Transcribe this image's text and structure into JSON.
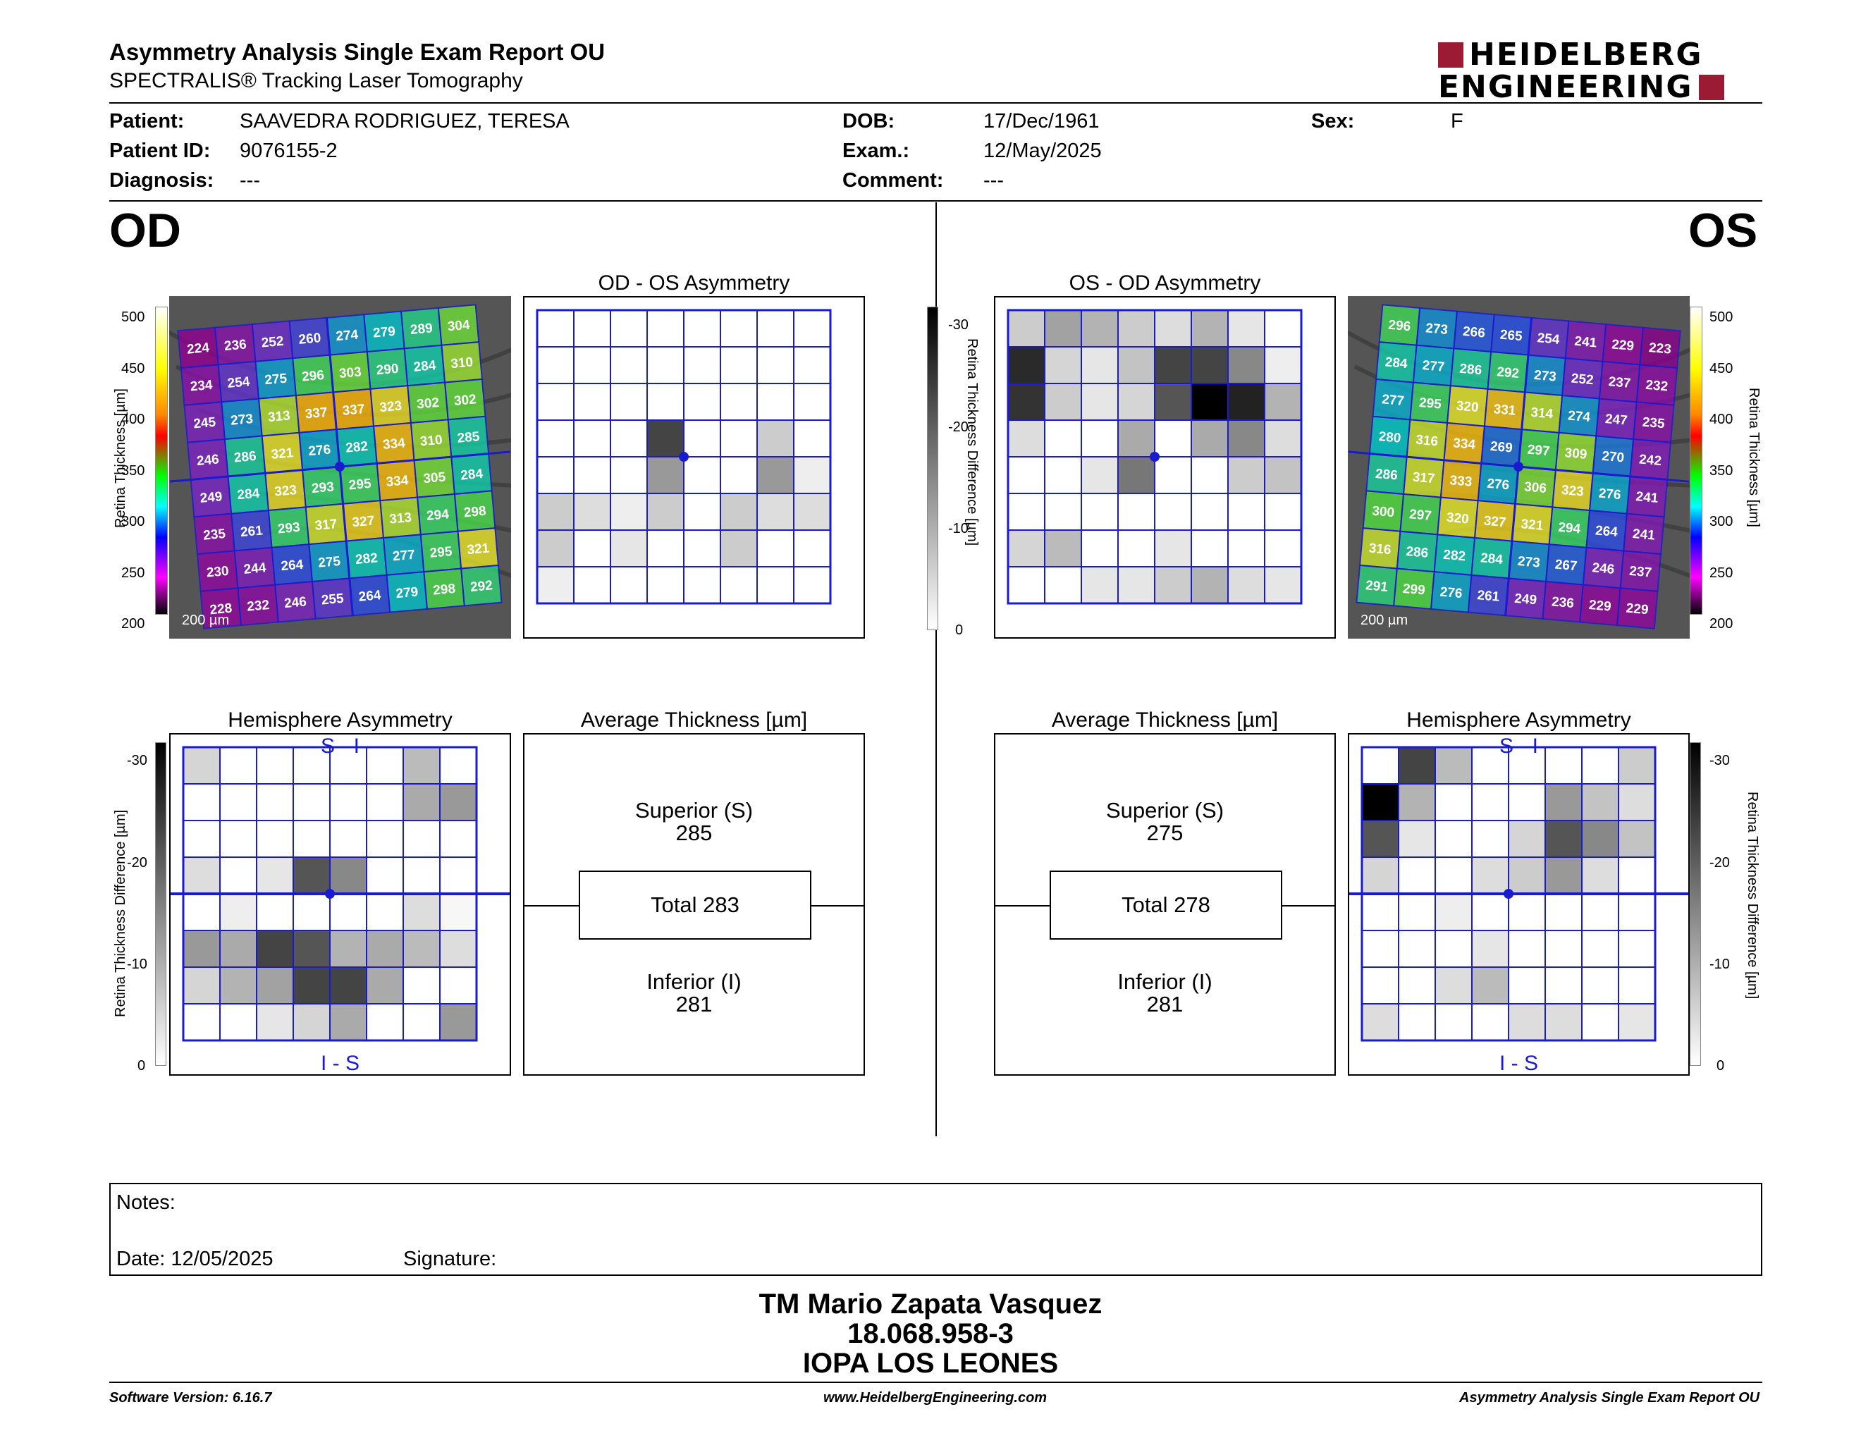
{
  "header": {
    "title": "Asymmetry Analysis Single Exam Report OU",
    "subtitle": "SPECTRALIS® Tracking Laser Tomography",
    "logo_line1": "HEIDELBERG",
    "logo_line2": "ENGINEERING",
    "brand_color": "#9a1b33"
  },
  "patient": {
    "patient_label": "Patient:",
    "patient_value": "SAAVEDRA RODRIGUEZ, TERESA",
    "id_label": "Patient ID:",
    "id_value": "9076155-2",
    "diag_label": "Diagnosis:",
    "diag_value": "---",
    "dob_label": "DOB:",
    "dob_value": "17/Dec/1961",
    "exam_label": "Exam.:",
    "exam_value": "12/May/2025",
    "comment_label": "Comment:",
    "comment_value": "---",
    "sex_label": "Sex:",
    "sex_value": "F"
  },
  "od": {
    "eye_label": "OD",
    "asym_title": "OD - OS Asymmetry",
    "hemi_title": "Hemisphere Asymmetry",
    "hemi_top": "S - I",
    "hemi_bottom": "I - S",
    "avg_title": "Average Thickness [µm]",
    "superior_label": "Superior (S)",
    "superior_value": "285",
    "total_label": "Total 283",
    "inferior_label": "Inferior (I)",
    "inferior_value": "281",
    "scale_bar": "200 µm",
    "thickness_grid": [
      [
        224,
        236,
        252,
        260,
        274,
        279,
        289,
        304
      ],
      [
        234,
        254,
        275,
        296,
        303,
        290,
        284,
        310
      ],
      [
        245,
        273,
        313,
        337,
        337,
        323,
        302,
        302
      ],
      [
        246,
        286,
        321,
        276,
        282,
        334,
        310,
        285
      ],
      [
        249,
        284,
        323,
        293,
        295,
        334,
        305,
        284
      ],
      [
        235,
        261,
        293,
        317,
        327,
        313,
        294,
        298
      ],
      [
        230,
        244,
        264,
        275,
        282,
        277,
        295,
        321
      ],
      [
        228,
        232,
        246,
        255,
        264,
        279,
        298,
        292
      ]
    ],
    "asym_grid": [
      [
        0,
        0,
        0,
        0,
        0,
        0,
        0,
        0
      ],
      [
        0,
        0,
        0,
        0,
        0,
        0,
        0,
        0
      ],
      [
        0,
        0,
        0,
        0,
        0,
        0,
        0,
        0
      ],
      [
        0,
        0,
        0,
        22,
        0,
        0,
        6,
        0
      ],
      [
        0,
        0,
        0,
        12,
        0,
        0,
        12,
        2
      ],
      [
        6,
        4,
        2,
        6,
        0,
        6,
        4,
        4
      ],
      [
        6,
        0,
        3,
        0,
        0,
        6,
        0,
        0
      ],
      [
        2,
        0,
        0,
        0,
        0,
        0,
        0,
        0
      ]
    ],
    "hemi_grid": [
      [
        5,
        0,
        0,
        0,
        0,
        0,
        8,
        0
      ],
      [
        0,
        0,
        0,
        0,
        0,
        0,
        10,
        12
      ],
      [
        0,
        0,
        0,
        0,
        0,
        0,
        0,
        0
      ],
      [
        4,
        0,
        3,
        20,
        14,
        0,
        0,
        0
      ],
      [
        0,
        2,
        0,
        0,
        0,
        0,
        4,
        1
      ],
      [
        12,
        10,
        22,
        20,
        9,
        10,
        8,
        4
      ],
      [
        5,
        9,
        11,
        22,
        22,
        10,
        0,
        0
      ],
      [
        0,
        0,
        3,
        5,
        10,
        0,
        0,
        12
      ]
    ]
  },
  "os": {
    "eye_label": "OS",
    "asym_title": "OS - OD Asymmetry",
    "hemi_title": "Hemisphere Asymmetry",
    "hemi_top": "S - I",
    "hemi_bottom": "I - S",
    "avg_title": "Average Thickness [µm]",
    "superior_label": "Superior (S)",
    "superior_value": "275",
    "total_label": "Total 278",
    "inferior_label": "Inferior (I)",
    "inferior_value": "281",
    "scale_bar": "200 µm",
    "thickness_grid": [
      [
        296,
        273,
        266,
        265,
        254,
        241,
        229,
        223
      ],
      [
        284,
        277,
        286,
        292,
        273,
        252,
        237,
        232
      ],
      [
        277,
        295,
        320,
        331,
        314,
        274,
        247,
        235
      ],
      [
        280,
        316,
        334,
        269,
        297,
        309,
        270,
        242
      ],
      [
        286,
        317,
        333,
        276,
        306,
        323,
        276,
        241
      ],
      [
        300,
        297,
        320,
        327,
        321,
        294,
        264,
        241
      ],
      [
        316,
        286,
        282,
        284,
        273,
        267,
        246,
        237
      ],
      [
        291,
        299,
        276,
        261,
        249,
        236,
        229,
        229
      ]
    ],
    "asym_grid": [
      [
        6,
        11,
        9,
        6,
        4,
        9,
        3,
        0
      ],
      [
        25,
        5,
        3,
        7,
        22,
        22,
        14,
        2
      ],
      [
        24,
        6,
        3,
        5,
        20,
        30,
        26,
        9
      ],
      [
        4,
        0,
        0,
        10,
        0,
        10,
        14,
        4
      ],
      [
        0,
        0,
        3,
        16,
        0,
        0,
        6,
        7
      ],
      [
        0,
        0,
        0,
        0,
        0,
        0,
        0,
        0
      ],
      [
        5,
        8,
        0,
        0,
        3,
        0,
        0,
        0
      ],
      [
        0,
        0,
        3,
        3,
        6,
        9,
        4,
        3
      ]
    ],
    "hemi_grid": [
      [
        0,
        22,
        8,
        0,
        0,
        0,
        0,
        6
      ],
      [
        30,
        9,
        0,
        0,
        0,
        12,
        7,
        4
      ],
      [
        20,
        3,
        0,
        0,
        5,
        20,
        14,
        7
      ],
      [
        5,
        0,
        0,
        4,
        6,
        12,
        4,
        0
      ],
      [
        0,
        0,
        2,
        0,
        0,
        0,
        0,
        0
      ],
      [
        0,
        0,
        0,
        3,
        0,
        0,
        0,
        0
      ],
      [
        0,
        0,
        4,
        8,
        0,
        0,
        0,
        0
      ],
      [
        4,
        0,
        0,
        0,
        4,
        4,
        0,
        3
      ]
    ]
  },
  "colorbar": {
    "thickness_label": "Retina  Thickness [µm]",
    "thickness_ticks": [
      "500",
      "450",
      "400",
      "350",
      "300",
      "250",
      "200"
    ],
    "diff_label": "Retina Thickness Difference [µm]",
    "diff_ticks": [
      "-30",
      "-20",
      "-10",
      "0"
    ],
    "grid_color": "#1a1ad0"
  },
  "notes": {
    "notes_label": "Notes:",
    "date_label": "Date: 12/05/2025",
    "signature_label": "Signature:"
  },
  "signature_block": {
    "name": "TM Mario Zapata Vasquez",
    "id": "18.068.958-3",
    "org": "IOPA LOS LEONES"
  },
  "footer": {
    "software": "Software Version: 6.16.7",
    "website": "www.HeidelbergEngineering.com",
    "report": "Asymmetry Analysis Single Exam Report OU"
  }
}
